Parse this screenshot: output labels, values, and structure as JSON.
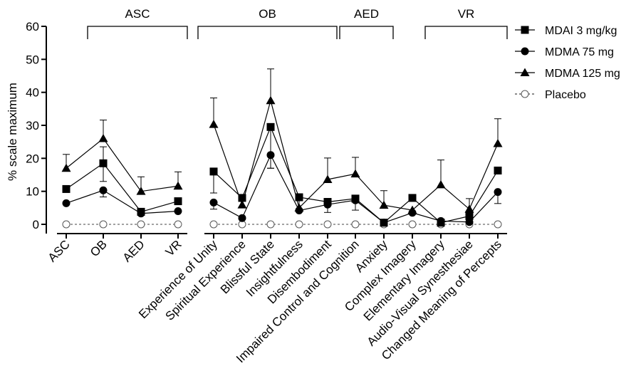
{
  "chart_data": {
    "type": "line",
    "title": "",
    "xlabel": "",
    "ylabel": "% scale maximum",
    "ylim": [
      0,
      60
    ],
    "yticks": [
      0,
      10,
      20,
      30,
      40,
      50,
      60
    ],
    "grid": false,
    "legend_position": "top-right",
    "panels": [
      {
        "categories": [
          "ASC",
          "OB",
          "AED",
          "VR"
        ],
        "group_brackets": [
          {
            "label": "ASC",
            "from": "OB",
            "to": "VR"
          }
        ]
      },
      {
        "categories": [
          "Experience of Unity",
          "Spiritual Experience",
          "Blissful State",
          "Insightfulness",
          "Disembodiment",
          "Impaired Control and Cognition",
          "Anxiety",
          "Complex Imagery",
          "Elementary Imagery",
          "Audio-Visual Synesthesiae",
          "Changed Meaning of Percepts"
        ],
        "group_brackets": [
          {
            "label": "OB",
            "from": "Experience of Unity",
            "to": "Disembodiment"
          },
          {
            "label": "AED",
            "from": "Impaired Control and Cognition",
            "to": "Anxiety"
          },
          {
            "label": "VR",
            "from": "Elementary Imagery",
            "to": "Changed Meaning of Percepts"
          }
        ]
      }
    ],
    "series": [
      {
        "name": "MDAI 3 mg/kg",
        "marker": "square",
        "line": "solid",
        "values": [
          [
            10.7,
            18.5,
            3.8,
            7.0
          ],
          [
            16.0,
            8.0,
            29.5,
            8.2,
            6.8,
            7.8,
            0.5,
            8.0,
            0.5,
            2.5,
            16.3
          ]
        ],
        "error_up": [
          [
            null,
            5.0,
            null,
            null
          ],
          [
            null,
            null,
            null,
            null,
            null,
            null,
            null,
            null,
            null,
            null,
            null
          ]
        ],
        "error_down": [
          [
            null,
            5.5,
            null,
            null
          ],
          [
            6.5,
            null,
            12.5,
            3.8,
            3.2,
            3.5,
            null,
            null,
            null,
            null,
            null
          ]
        ]
      },
      {
        "name": "MDMA 75 mg",
        "marker": "circle",
        "line": "solid",
        "values": [
          [
            6.4,
            10.3,
            3.3,
            4.0
          ],
          [
            6.6,
            1.9,
            21.0,
            4.2,
            6.0,
            7.3,
            0.5,
            3.5,
            1.0,
            0.7,
            9.8
          ]
        ],
        "error_up": [
          [
            null,
            null,
            null,
            null
          ],
          [
            null,
            null,
            null,
            null,
            null,
            null,
            null,
            null,
            null,
            null,
            null
          ]
        ],
        "error_down": [
          [
            null,
            2.0,
            null,
            null
          ],
          [
            2.0,
            null,
            4.0,
            null,
            null,
            null,
            null,
            null,
            null,
            null,
            3.5
          ]
        ]
      },
      {
        "name": "MDMA 125 mg",
        "marker": "triangle",
        "line": "solid",
        "values": [
          [
            17.0,
            26.0,
            10.0,
            11.6
          ],
          [
            30.3,
            5.9,
            37.5,
            5.0,
            13.6,
            15.3,
            5.8,
            4.3,
            12.0,
            4.6,
            24.5
          ]
        ],
        "error_up": [
          [
            4.2,
            5.6,
            4.4,
            4.3
          ],
          [
            8.0,
            null,
            9.6,
            null,
            6.5,
            5.0,
            4.4,
            null,
            7.5,
            3.2,
            7.5
          ]
        ],
        "error_down": [
          [
            null,
            null,
            null,
            null
          ],
          [
            null,
            null,
            null,
            null,
            null,
            null,
            null,
            null,
            null,
            null,
            null
          ]
        ]
      },
      {
        "name": "Placebo",
        "marker": "open-circle",
        "line": "dashed",
        "values": [
          [
            0,
            0,
            0,
            0
          ],
          [
            0,
            0,
            0,
            0,
            0,
            0,
            0,
            0,
            0,
            0,
            0
          ]
        ],
        "error_up": [
          [
            null,
            null,
            null,
            null
          ],
          [
            null,
            null,
            null,
            null,
            null,
            null,
            null,
            null,
            null,
            null,
            null
          ]
        ],
        "error_down": [
          [
            null,
            null,
            null,
            null
          ],
          [
            null,
            null,
            null,
            null,
            null,
            null,
            null,
            null,
            null,
            null,
            null
          ]
        ]
      }
    ]
  }
}
